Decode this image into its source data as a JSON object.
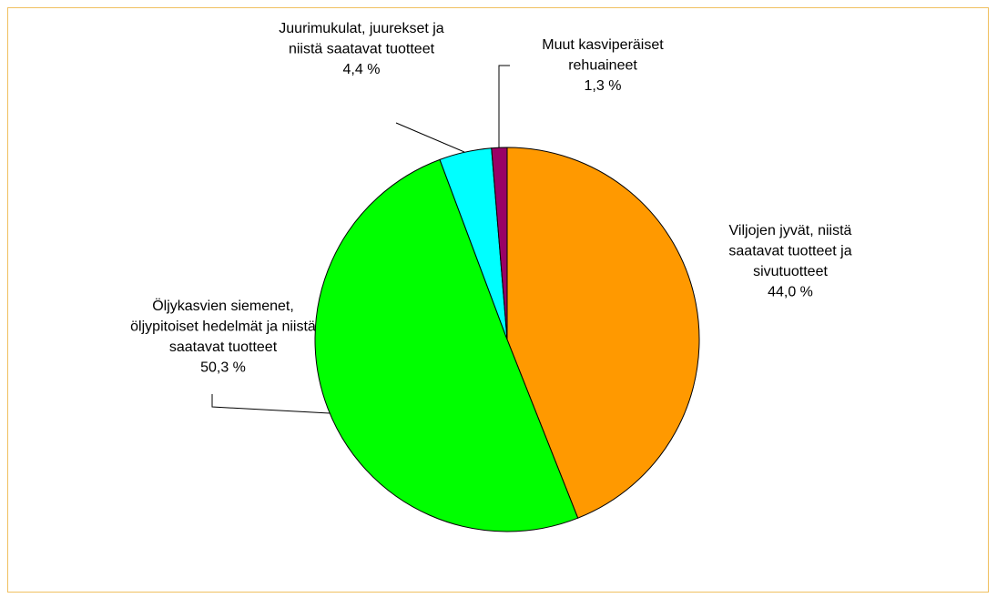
{
  "chart_data": {
    "type": "pie",
    "categories": [
      "Viljojen jyvät, niistä saatavat tuotteet ja sivutuotteet",
      "Öljykasvien siemenet, öljypitoiset hedelmät ja niistä saatavat tuotteet",
      "Juurimukulat, juurekset ja niistä saatavat tuotteet",
      "Muut kasviperäiset rehuaineet"
    ],
    "values": [
      44.0,
      50.3,
      4.4,
      1.3
    ],
    "value_labels": [
      "44,0 %",
      "50,3 %",
      "4,4 %",
      "1,3 %"
    ],
    "colors": [
      "#ff9900",
      "#00ff00",
      "#00ffff",
      "#990066"
    ]
  }
}
